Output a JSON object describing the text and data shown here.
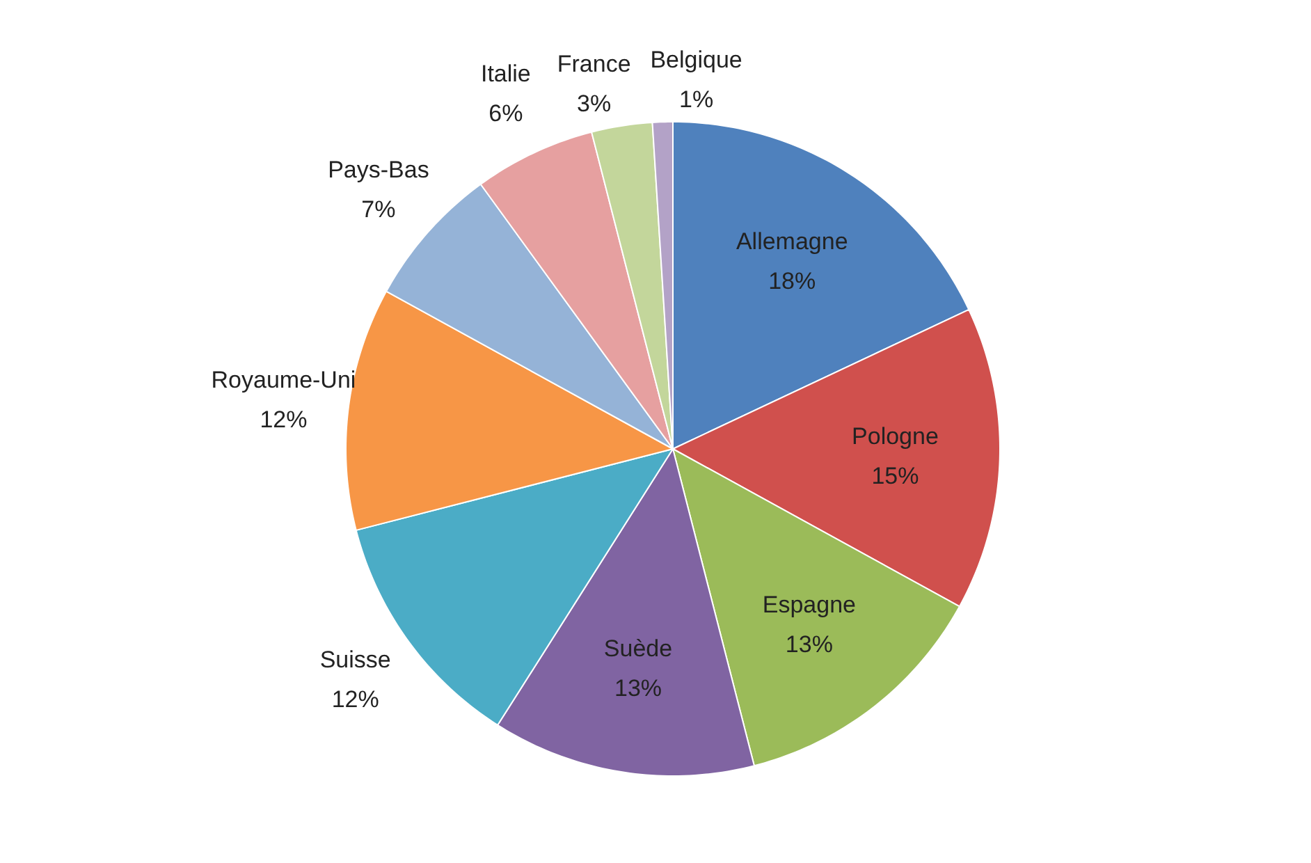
{
  "chart_data": {
    "type": "pie",
    "categories": [
      "Allemagne",
      "Pologne",
      "Espagne",
      "Suède",
      "Suisse",
      "Royaume-Uni",
      "Pays-Bas",
      "Italie",
      "France",
      "Belgique"
    ],
    "values": [
      18,
      15,
      13,
      13,
      12,
      12,
      7,
      6,
      3,
      1
    ],
    "value_labels": [
      "18%",
      "15%",
      "13%",
      "13%",
      "12%",
      "12%",
      "7%",
      "6%",
      "3%",
      "1%"
    ],
    "colors": [
      "#4f81bd",
      "#d0504d",
      "#9bbb59",
      "#8064a2",
      "#4bacc6",
      "#f79646",
      "#95b3d7",
      "#e6a0a0",
      "#c3d69b",
      "#b3a2c7"
    ],
    "legend": false
  }
}
